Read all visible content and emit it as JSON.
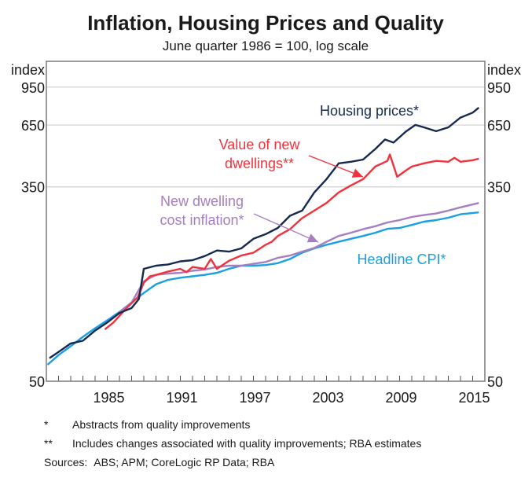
{
  "chart_data": {
    "type": "line",
    "title": "Inflation, Housing Prices and Quality",
    "subtitle": "June quarter 1986 = 100, log scale",
    "xlabel": "",
    "ylabel_left": "index",
    "ylabel_right": "index",
    "yscale": "log",
    "ylim": [
      50,
      1230
    ],
    "xlim": [
      1980,
      2016
    ],
    "yticks": [
      50,
      350,
      650,
      950
    ],
    "ytick_labels": [
      "50",
      "350",
      "650",
      "950"
    ],
    "xticks": [
      1985,
      1991,
      1997,
      2003,
      2009,
      2015
    ],
    "xtick_labels": [
      "1985",
      "1991",
      "1997",
      "2003",
      "2009",
      "2015"
    ],
    "minor_xticks_every_years": 1,
    "grid": true,
    "series": [
      {
        "name": "Housing prices*",
        "color": "#16294f",
        "x": [
          1980.25,
          1981,
          1982,
          1983,
          1984,
          1985,
          1986,
          1987,
          1987.6,
          1988,
          1989,
          1990,
          1991,
          1992,
          1993,
          1994,
          1995,
          1996,
          1997,
          1998,
          1999,
          2000,
          2001,
          2002,
          2003,
          2004,
          2005,
          2006,
          2007,
          2007.8,
          2008.5,
          2009.5,
          2010.3,
          2011,
          2012,
          2013,
          2014,
          2015,
          2015.5
        ],
        "values": [
          63,
          67,
          73,
          75,
          83,
          90,
          99,
          104,
          114,
          154,
          159,
          161,
          166,
          168,
          175,
          185,
          183,
          189,
          208,
          218,
          232,
          262,
          276,
          331,
          378,
          443,
          450,
          460,
          511,
          562,
          545,
          608,
          651,
          635,
          611,
          635,
          700,
          736,
          774
        ]
      },
      {
        "name": "Value of new dwellings**",
        "color": "#f0323c",
        "x": [
          1984.8,
          1985.5,
          1986.5,
          1987.5,
          1988,
          1988.5,
          1989,
          1990,
          1991,
          1991.5,
          1992,
          1993,
          1993.5,
          1994,
          1995,
          1996,
          1997,
          1998,
          1998.5,
          1999,
          2000,
          2001,
          2002,
          2003,
          2004,
          2005,
          2006,
          2007,
          2008,
          2008.2,
          2008.8,
          2009.5,
          2010,
          2011,
          2012,
          2013,
          2013.5,
          2014,
          2015,
          2015.5
        ],
        "values": [
          84,
          90,
          103,
          116,
          134,
          143,
          145,
          150,
          154,
          149,
          157,
          154,
          170,
          154,
          167,
          176,
          181,
          196,
          202,
          214,
          229,
          256,
          276,
          298,
          331,
          355,
          378,
          429,
          454,
          484,
          387,
          412,
          429,
          443,
          454,
          450,
          468,
          450,
          457,
          464
        ]
      },
      {
        "name": "New dwelling cost inflation*",
        "color": "#a57fc2",
        "x": [
          1986,
          1987,
          1988,
          1989,
          1990,
          1991,
          1992,
          1993,
          1994,
          1995,
          1996,
          1997,
          1998,
          1999,
          2000,
          2001,
          2002,
          2003,
          2004,
          2005,
          2006,
          2007,
          2008,
          2009,
          2010,
          2011,
          2012,
          2013,
          2014,
          2015.5
        ],
        "values": [
          100,
          110,
          136,
          145,
          147,
          148,
          151,
          153,
          157,
          159,
          159,
          162,
          165,
          172,
          176,
          183,
          190,
          202,
          214,
          221,
          229,
          236,
          245,
          251,
          259,
          264,
          268,
          276,
          285,
          298
        ]
      },
      {
        "name": "Headline CPI*",
        "color": "#1aa0e0",
        "x": [
          1980.1,
          1981,
          1982,
          1983,
          1984,
          1985,
          1986,
          1987,
          1988,
          1989,
          1990,
          1991,
          1992,
          1993,
          1994,
          1995,
          1996,
          1997,
          1998,
          1999,
          2000,
          2001,
          2002,
          2003,
          2004,
          2005,
          2006,
          2007,
          2008,
          2009,
          2010,
          2011,
          2012,
          2013,
          2014,
          2015.5
        ],
        "values": [
          59,
          65,
          71,
          78,
          85,
          92,
          100,
          110,
          121,
          132,
          138,
          141,
          143,
          145,
          148,
          154,
          159,
          159,
          160,
          163,
          170,
          181,
          189,
          196,
          202,
          208,
          214,
          221,
          230,
          232,
          239,
          247,
          251,
          257,
          266,
          271
        ]
      }
    ],
    "annotations": [
      {
        "series": "Housing prices*",
        "lines": [
          "Housing prices*"
        ]
      },
      {
        "series": "Value of new dwellings**",
        "lines": [
          "Value of new",
          "dwellings**"
        ],
        "arrow": true
      },
      {
        "series": "New dwelling cost inflation*",
        "lines": [
          "New dwelling",
          "cost inflation*"
        ],
        "arrow": true
      },
      {
        "series": "Headline CPI*",
        "lines": [
          "Headline CPI*"
        ]
      }
    ]
  },
  "notes": [
    {
      "mark": "*",
      "text": "Abstracts from quality improvements"
    },
    {
      "mark": "**",
      "text": "Includes changes associated with quality improvements; RBA estimates"
    }
  ],
  "sources": {
    "label": "Sources:",
    "text": "ABS; APM; CoreLogic RP Data; RBA"
  }
}
